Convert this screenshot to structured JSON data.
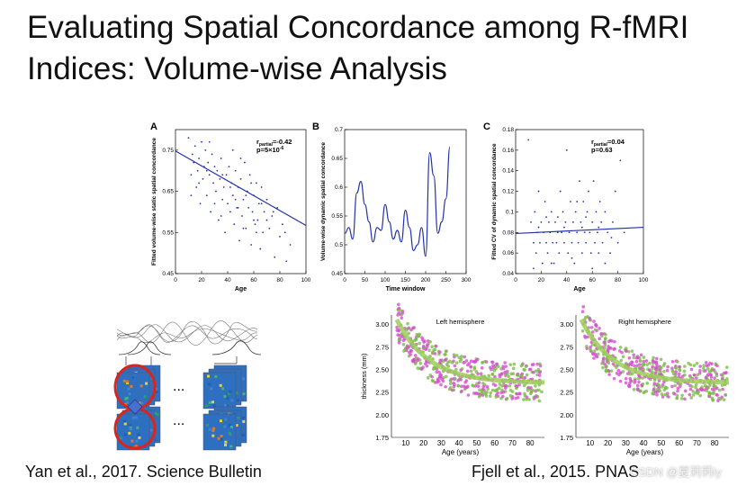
{
  "slide": {
    "title_line1": "Evaluating Spatial Concordance among R-fMRI",
    "title_line2": "Indices: Volume-wise Analysis",
    "credit_left": "Yan et al., 2017. Science Bulletin",
    "credit_right": "Fjell et al., 2015.  PNAS",
    "watermark": "CSDN @夏莉莉iy"
  },
  "chart_data": [
    {
      "type": "scatter",
      "panel": "A",
      "xlabel": "Age",
      "ylabel": "Fitted volume-wise static spatial concordance",
      "xlim": [
        0,
        100
      ],
      "ylim": [
        0.45,
        0.8
      ],
      "xticks": [
        "0",
        "20",
        "40",
        "60",
        "80",
        "100"
      ],
      "yticks": [
        "0.45",
        "0.55",
        "0.65",
        "0.75"
      ],
      "annotation_r": "r",
      "annotation_r_sub": "partial",
      "annotation_r_val": "=-0.42",
      "annotation_p": "p=5×10",
      "annotation_p_exp": "-6",
      "fit_line": {
        "x": [
          0,
          100
        ],
        "y": [
          0.748,
          0.567
        ]
      },
      "points": [
        [
          10,
          0.78
        ],
        [
          12,
          0.69
        ],
        [
          13,
          0.74
        ],
        [
          14,
          0.72
        ],
        [
          15,
          0.76
        ],
        [
          16,
          0.66
        ],
        [
          17,
          0.7
        ],
        [
          18,
          0.73
        ],
        [
          19,
          0.62
        ],
        [
          20,
          0.77
        ],
        [
          21,
          0.68
        ],
        [
          22,
          0.71
        ],
        [
          23,
          0.75
        ],
        [
          24,
          0.64
        ],
        [
          25,
          0.72
        ],
        [
          26,
          0.69
        ],
        [
          27,
          0.6
        ],
        [
          28,
          0.74
        ],
        [
          29,
          0.67
        ],
        [
          30,
          0.71
        ],
        [
          31,
          0.65
        ],
        [
          32,
          0.7
        ],
        [
          33,
          0.58
        ],
        [
          34,
          0.68
        ],
        [
          35,
          0.73
        ],
        [
          36,
          0.63
        ],
        [
          37,
          0.66
        ],
        [
          38,
          0.55
        ],
        [
          39,
          0.69
        ],
        [
          40,
          0.62
        ],
        [
          41,
          0.71
        ],
        [
          42,
          0.6
        ],
        [
          43,
          0.67
        ],
        [
          44,
          0.64
        ],
        [
          45,
          0.57
        ],
        [
          46,
          0.7
        ],
        [
          47,
          0.61
        ],
        [
          48,
          0.66
        ],
        [
          49,
          0.53
        ],
        [
          50,
          0.68
        ],
        [
          51,
          0.59
        ],
        [
          52,
          0.63
        ],
        [
          53,
          0.72
        ],
        [
          54,
          0.56
        ],
        [
          55,
          0.65
        ],
        [
          56,
          0.61
        ],
        [
          57,
          0.69
        ],
        [
          58,
          0.52
        ],
        [
          59,
          0.6
        ],
        [
          60,
          0.64
        ],
        [
          61,
          0.57
        ],
        [
          62,
          0.67
        ],
        [
          63,
          0.58
        ],
        [
          64,
          0.62
        ],
        [
          65,
          0.51
        ],
        [
          66,
          0.66
        ],
        [
          67,
          0.55
        ],
        [
          68,
          0.6
        ],
        [
          70,
          0.63
        ],
        [
          72,
          0.56
        ],
        [
          74,
          0.59
        ],
        [
          76,
          0.49
        ],
        [
          78,
          0.61
        ],
        [
          80,
          0.54
        ],
        [
          82,
          0.57
        ],
        [
          85,
          0.48
        ],
        [
          88,
          0.52
        ],
        [
          18,
          0.67
        ],
        [
          24,
          0.7
        ],
        [
          30,
          0.62
        ],
        [
          36,
          0.69
        ],
        [
          42,
          0.66
        ],
        [
          48,
          0.61
        ],
        [
          54,
          0.64
        ],
        [
          60,
          0.58
        ],
        [
          66,
          0.62
        ],
        [
          50,
          0.73
        ],
        [
          44,
          0.75
        ],
        [
          26,
          0.77
        ],
        [
          58,
          0.67
        ],
        [
          62,
          0.55
        ],
        [
          70,
          0.58
        ],
        [
          12,
          0.64
        ],
        [
          35,
          0.59
        ],
        [
          46,
          0.63
        ],
        [
          52,
          0.56
        ],
        [
          75,
          0.6
        ],
        [
          84,
          0.55
        ]
      ]
    },
    {
      "type": "line",
      "panel": "B",
      "xlabel": "Time window",
      "ylabel": "Volume-wise dynamic spatial concordance",
      "xlim": [
        0,
        300
      ],
      "ylim": [
        0.45,
        0.7
      ],
      "xticks": [
        "0",
        "50",
        "100",
        "150",
        "200",
        "250",
        "300"
      ],
      "yticks": [
        "0.45",
        "0.5",
        "0.55",
        "0.6",
        "0.65",
        "0.7"
      ],
      "x": [
        1,
        10,
        20,
        30,
        40,
        50,
        60,
        70,
        80,
        90,
        100,
        110,
        120,
        130,
        140,
        150,
        160,
        170,
        180,
        190,
        200,
        210,
        220,
        230,
        240,
        250,
        260
      ],
      "y": [
        0.52,
        0.53,
        0.51,
        0.59,
        0.61,
        0.57,
        0.54,
        0.505,
        0.53,
        0.525,
        0.57,
        0.54,
        0.51,
        0.525,
        0.505,
        0.56,
        0.53,
        0.49,
        0.5,
        0.53,
        0.48,
        0.66,
        0.62,
        0.52,
        0.54,
        0.58,
        0.67
      ]
    },
    {
      "type": "scatter",
      "panel": "C",
      "xlabel": "Age",
      "ylabel": "Fitted CV of dynamic spatial concordance",
      "xlim": [
        0,
        100
      ],
      "ylim": [
        0.04,
        0.18
      ],
      "xticks": [
        "0",
        "20",
        "40",
        "60",
        "80",
        "100"
      ],
      "yticks": [
        "0.04",
        "0.06",
        "0.08",
        "0.1",
        "0.12",
        "0.14",
        "0.16",
        "0.18"
      ],
      "annotation_r": "r",
      "annotation_r_sub": "partial",
      "annotation_r_val": "=0.04",
      "annotation_p": "p=0.63",
      "fit_line": {
        "x": [
          0,
          100
        ],
        "y": [
          0.079,
          0.085
        ]
      },
      "points": [
        [
          10,
          0.17
        ],
        [
          12,
          0.09
        ],
        [
          14,
          0.07
        ],
        [
          15,
          0.1
        ],
        [
          16,
          0.06
        ],
        [
          17,
          0.08
        ],
        [
          18,
          0.12
        ],
        [
          19,
          0.07
        ],
        [
          20,
          0.09
        ],
        [
          21,
          0.05
        ],
        [
          22,
          0.08
        ],
        [
          23,
          0.11
        ],
        [
          24,
          0.07
        ],
        [
          25,
          0.06
        ],
        [
          26,
          0.09
        ],
        [
          27,
          0.08
        ],
        [
          28,
          0.1
        ],
        [
          29,
          0.07
        ],
        [
          30,
          0.05
        ],
        [
          31,
          0.09
        ],
        [
          32,
          0.07
        ],
        [
          33,
          0.08
        ],
        [
          34,
          0.06
        ],
        [
          35,
          0.12
        ],
        [
          36,
          0.08
        ],
        [
          37,
          0.1
        ],
        [
          38,
          0.07
        ],
        [
          39,
          0.09
        ],
        [
          40,
          0.16
        ],
        [
          41,
          0.06
        ],
        [
          42,
          0.08
        ],
        [
          43,
          0.11
        ],
        [
          44,
          0.07
        ],
        [
          45,
          0.09
        ],
        [
          46,
          0.05
        ],
        [
          47,
          0.1
        ],
        [
          48,
          0.08
        ],
        [
          49,
          0.07
        ],
        [
          50,
          0.13
        ],
        [
          51,
          0.09
        ],
        [
          52,
          0.06
        ],
        [
          53,
          0.11
        ],
        [
          54,
          0.08
        ],
        [
          55,
          0.07
        ],
        [
          56,
          0.1
        ],
        [
          57,
          0.12
        ],
        [
          58,
          0.08
        ],
        [
          59,
          0.06
        ],
        [
          60,
          0.09
        ],
        [
          61,
          0.13
        ],
        [
          62,
          0.07
        ],
        [
          63,
          0.1
        ],
        [
          64,
          0.08
        ],
        [
          65,
          0.06
        ],
        [
          66,
          0.11
        ],
        [
          67,
          0.09
        ],
        [
          68,
          0.07
        ],
        [
          70,
          0.1
        ],
        [
          72,
          0.08
        ],
        [
          74,
          0.06
        ],
        [
          76,
          0.09
        ],
        [
          78,
          0.12
        ],
        [
          80,
          0.07
        ],
        [
          82,
          0.15
        ],
        [
          85,
          0.08
        ],
        [
          14,
          0.045
        ],
        [
          28,
          0.05
        ],
        [
          44,
          0.055
        ],
        [
          60,
          0.045
        ],
        [
          70,
          0.05
        ],
        [
          33,
          0.095
        ],
        [
          48,
          0.11
        ],
        [
          55,
          0.095
        ],
        [
          65,
          0.085
        ],
        [
          38,
          0.085
        ],
        [
          24,
          0.095
        ],
        [
          18,
          0.085
        ],
        [
          52,
          0.085
        ],
        [
          75,
          0.075
        ]
      ]
    },
    {
      "type": "scatter",
      "panel": "Left hemisphere",
      "title": "Left hemisphere",
      "xlabel": "Age (years)",
      "ylabel": "thickness (mm)",
      "xlim": [
        2,
        88
      ],
      "ylim": [
        1.75,
        3.1
      ],
      "xticks": [
        "10",
        "20",
        "30",
        "40",
        "50",
        "60",
        "70",
        "80"
      ],
      "yticks": [
        "1.75",
        "2.00",
        "2.25",
        "2.50",
        "2.75",
        "3.00"
      ]
    },
    {
      "type": "scatter",
      "panel": "Right hemisphere",
      "title": "Right hemisphere",
      "xlabel": "Age (years)",
      "ylabel": "",
      "xlim": [
        2,
        88
      ],
      "ylim": [
        1.75,
        3.1
      ],
      "xticks": [
        "10",
        "20",
        "30",
        "40",
        "50",
        "60",
        "70",
        "80"
      ],
      "yticks": [
        "1.75",
        "2.00",
        "2.25",
        "2.50",
        "2.75",
        "3.00"
      ]
    }
  ],
  "diagram": {
    "ellipsis_top": "...",
    "ellipsis_bottom": "..."
  }
}
